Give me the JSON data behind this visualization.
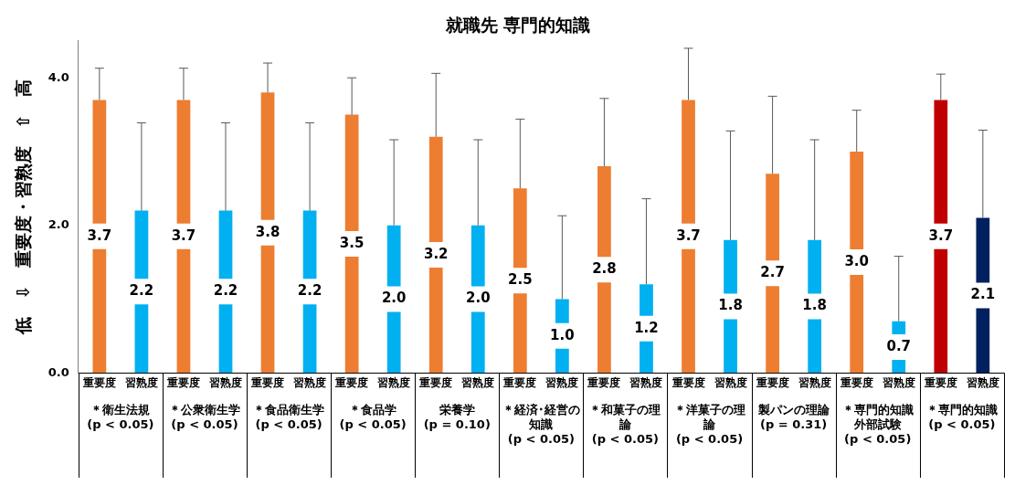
{
  "chart_data": {
    "type": "bar",
    "title": "就職先 専門的知識",
    "ylabel": "低　⇩　重要度・習熟度　⇧　高",
    "categories": [
      "＊衛生法規 (p < 0.05)",
      "＊公衆衛生学 (p < 0.05)",
      "＊食品衛生学 (p < 0.05)",
      "＊食品学 (p < 0.05)",
      "栄養学 (p = 0.10)",
      "＊経済･経営の知識 (p < 0.05)",
      "＊和菓子の理論 (p < 0.05)",
      "＊洋菓子の理論 (p < 0.05)",
      "製パンの理論 (p = 0.31)",
      "＊専門的知識外部試験 (p < 0.05)",
      "＊専門的知識 (p < 0.05)"
    ],
    "series": [
      {
        "name": "重要度",
        "value_labels": [
          "3.7",
          "3.7",
          "3.8",
          "3.5",
          "3.2",
          "2.5",
          "2.8",
          "3.7",
          "2.7",
          "3.0",
          "3.7"
        ],
        "colors": [
          "#ed7d31",
          "#ed7d31",
          "#ed7d31",
          "#ed7d31",
          "#ed7d31",
          "#ed7d31",
          "#ed7d31",
          "#ed7d31",
          "#ed7d31",
          "#ed7d31",
          "#c00000"
        ],
        "values": [
          3.7,
          3.7,
          3.8,
          3.5,
          3.2,
          2.5,
          2.8,
          3.7,
          2.7,
          3.0,
          3.7
        ],
        "errors": [
          [
            3.7,
            4.13
          ],
          [
            3.7,
            4.13
          ],
          [
            3.8,
            4.2
          ],
          [
            3.5,
            4.0
          ],
          [
            3.2,
            4.06
          ],
          [
            2.5,
            3.44
          ],
          [
            2.8,
            3.72
          ],
          [
            3.7,
            4.4
          ],
          [
            2.7,
            3.75
          ],
          [
            3.0,
            3.56
          ],
          [
            3.7,
            4.05
          ]
        ]
      },
      {
        "name": "習熟度",
        "value_labels": [
          "2.2",
          "2.2",
          "2.2",
          "2.0",
          "2.0",
          "1.0",
          "1.2",
          "1.8",
          "1.8",
          "0.7",
          "2.1"
        ],
        "colors": [
          "#00b0f0",
          "#00b0f0",
          "#00b0f0",
          "#00b0f0",
          "#00b0f0",
          "#00b0f0",
          "#00b0f0",
          "#00b0f0",
          "#00b0f0",
          "#00b0f0",
          "#002060"
        ],
        "values": [
          2.2,
          2.2,
          2.2,
          2.0,
          2.0,
          1.0,
          1.2,
          1.8,
          1.8,
          0.7,
          2.1
        ],
        "errors": [
          [
            2.2,
            3.39
          ],
          [
            2.2,
            3.39
          ],
          [
            2.2,
            3.39
          ],
          [
            2.0,
            3.16
          ],
          [
            2.0,
            3.16
          ],
          [
            1.0,
            2.13
          ],
          [
            1.2,
            2.36
          ],
          [
            1.8,
            3.28
          ],
          [
            1.8,
            3.16
          ],
          [
            0.7,
            1.58
          ],
          [
            2.1,
            3.29
          ]
        ]
      }
    ],
    "ylim": [
      0,
      4.5
    ],
    "yticks": [
      {
        "value": 0,
        "label": "0.0"
      },
      {
        "value": 2,
        "label": "2.0"
      },
      {
        "value": 4,
        "label": "4.0"
      }
    ],
    "grid": false,
    "legend": false
  }
}
